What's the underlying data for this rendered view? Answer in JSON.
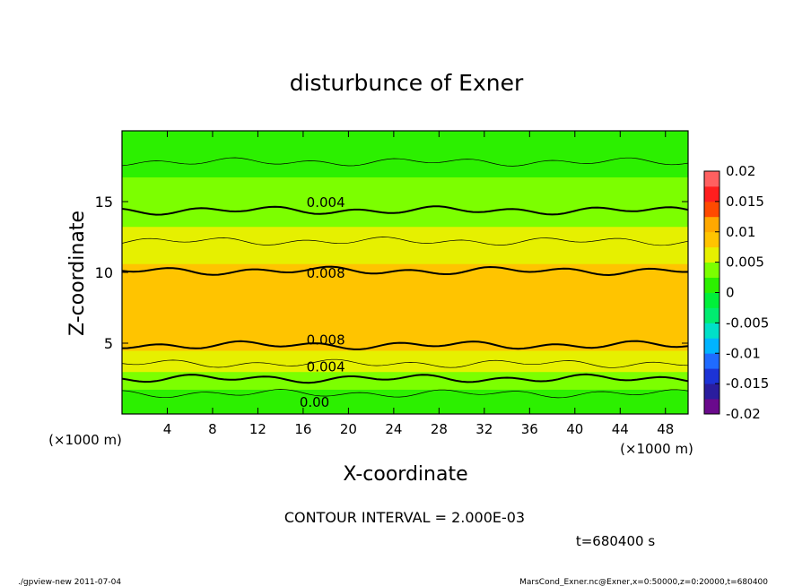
{
  "chart_data": {
    "type": "heatmap",
    "title": "disturbunce of Exner",
    "xlabel": "X-coordinate",
    "ylabel": "Z-coordinate",
    "x_unit": "(×1000 m)",
    "xlim": [
      0,
      50
    ],
    "ylim": [
      0,
      20
    ],
    "x_ticks": [
      "4",
      "8",
      "12",
      "16",
      "20",
      "24",
      "28",
      "32",
      "36",
      "40",
      "44",
      "48"
    ],
    "y_ticks": [
      "5",
      "10",
      "15"
    ],
    "contour_labels": [
      "0.004",
      "0.008",
      "0.008",
      "0.004",
      "0.00"
    ],
    "contour_interval_text": "CONTOUR INTERVAL = 2.000E-03",
    "time_text": "t=680400 s",
    "colorbar_ticks": [
      "0.02",
      "0.015",
      "0.01",
      "0.005",
      "0",
      "-0.005",
      "-0.01",
      "-0.015",
      "-0.02"
    ],
    "colorbar_range": [
      -0.02,
      0.02
    ],
    "field_profile": {
      "z": [
        0,
        1,
        2,
        3,
        4,
        5,
        6,
        7,
        8,
        9,
        10,
        11,
        12,
        13,
        14,
        15,
        16,
        17,
        18,
        19,
        20
      ],
      "value": [
        0.0005,
        0.0012,
        0.003,
        0.005,
        0.0068,
        0.0082,
        0.0092,
        0.0098,
        0.0096,
        0.009,
        0.0081,
        0.0072,
        0.0062,
        0.0052,
        0.0043,
        0.0035,
        0.0029,
        0.0024,
        0.0019,
        0.0016,
        0.0014
      ]
    },
    "contour_levels": [
      0.0,
      0.002,
      0.004,
      0.006,
      0.008,
      0.01
    ]
  },
  "footer": {
    "left": "./gpview-new   2011-07-04",
    "right": "MarsCond_Exner.nc@Exner,x=0:50000,z=0:20000,t=680400"
  }
}
